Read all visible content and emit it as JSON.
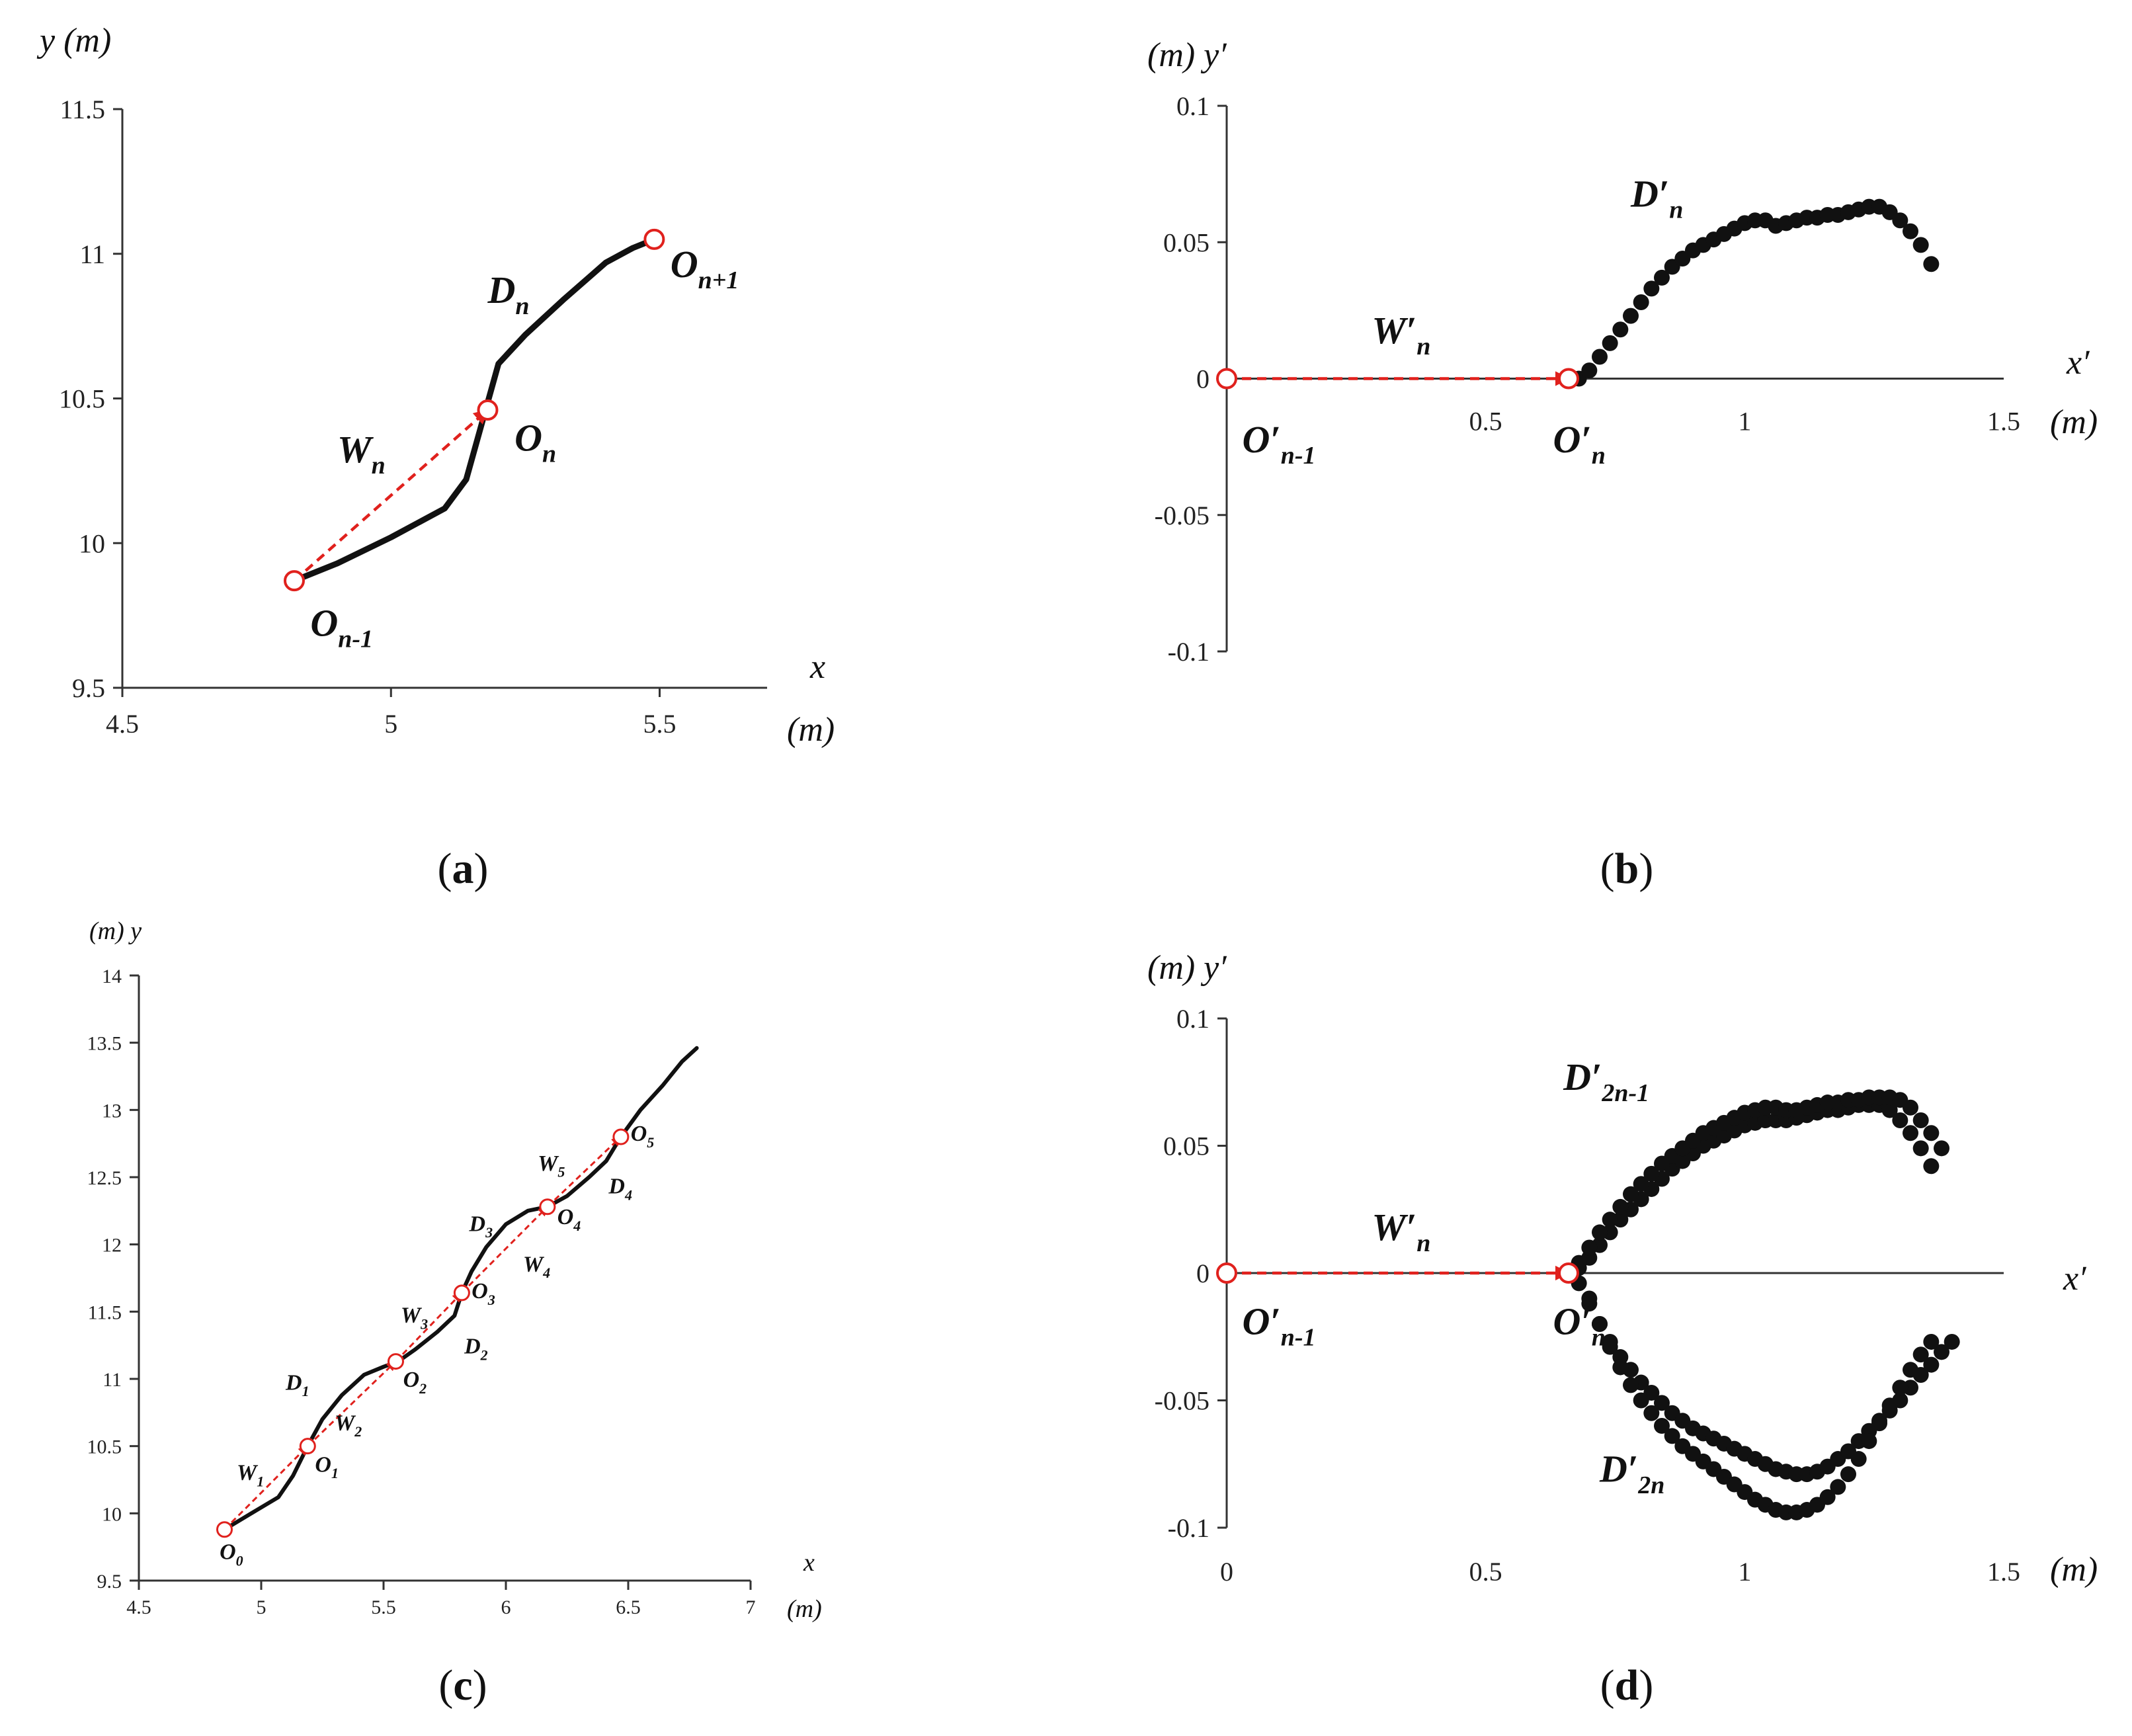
{
  "chart_data": [
    {
      "id": "a",
      "type": "line",
      "caption": "a",
      "xlabel_top": "x",
      "xlabel_unit": "(m)",
      "ylabel": "y (m)",
      "xlim": [
        4.5,
        5.7
      ],
      "ylim": [
        9.5,
        11.5
      ],
      "xticks": [
        "4.5",
        "5",
        "5.5"
      ],
      "yticks": [
        "9.5",
        "10",
        "10.5",
        "11",
        "11.5"
      ],
      "xtick_values": [
        4.5,
        5,
        5.5
      ],
      "ytick_values": [
        9.5,
        10,
        10.5,
        11,
        11.5
      ],
      "series": [
        {
          "x": [
            4.82,
            4.9,
            5.0,
            5.1,
            5.14,
            5.17,
            5.2,
            5.25,
            5.32,
            5.4,
            5.45,
            5.49
          ],
          "y": [
            9.87,
            9.93,
            10.02,
            10.12,
            10.22,
            10.42,
            10.62,
            10.72,
            10.84,
            10.97,
            11.02,
            11.05
          ]
        }
      ],
      "arrows": [
        {
          "x1": 4.82,
          "y1": 9.87,
          "x2": 5.18,
          "y2": 10.46
        }
      ],
      "markers": [
        {
          "x": 4.82,
          "y": 9.87
        },
        {
          "x": 5.18,
          "y": 10.46
        },
        {
          "x": 5.49,
          "y": 11.05
        }
      ],
      "annotations": [
        {
          "base": "W",
          "sub": "n",
          "x": 4.9,
          "y": 10.28
        },
        {
          "base": "O",
          "sub": "n",
          "x": 5.23,
          "y": 10.32
        },
        {
          "base": "D",
          "sub": "n",
          "x": 5.18,
          "y": 10.83
        },
        {
          "base": "O",
          "sub": "n+1",
          "x": 5.52,
          "y": 10.92
        },
        {
          "base": "O",
          "sub": "n-1",
          "x": 4.85,
          "y": 9.68
        }
      ]
    },
    {
      "id": "b",
      "type": "scatter",
      "caption": "b",
      "xlabel": "x′",
      "xlabel_unit": "(m)",
      "ylabel": "(m) y′",
      "xlim": [
        0,
        1.5
      ],
      "ylim": [
        -0.1,
        0.1
      ],
      "xticks": [
        "0.5",
        "1",
        "1.5"
      ],
      "yticks": [
        "-0.1",
        "-0.05",
        "0",
        "0.05",
        "0.1"
      ],
      "xtick_values": [
        0.5,
        1,
        1.5
      ],
      "ytick_values": [
        -0.1,
        -0.05,
        0,
        0.05,
        0.1
      ],
      "series": [
        {
          "x": [
            0.66,
            0.68,
            0.7,
            0.72,
            0.74,
            0.76,
            0.78,
            0.8,
            0.82,
            0.84,
            0.86,
            0.88,
            0.9,
            0.92,
            0.94,
            0.96,
            0.98,
            1.0,
            1.02,
            1.04,
            1.06,
            1.08,
            1.1,
            1.12,
            1.14,
            1.16,
            1.18,
            1.2,
            1.22,
            1.24,
            1.26,
            1.28,
            1.3,
            1.32,
            1.34,
            1.36
          ],
          "y": [
            0.0,
            0.0,
            0.003,
            0.008,
            0.013,
            0.018,
            0.023,
            0.028,
            0.033,
            0.037,
            0.041,
            0.044,
            0.047,
            0.049,
            0.051,
            0.053,
            0.055,
            0.057,
            0.058,
            0.058,
            0.056,
            0.057,
            0.058,
            0.059,
            0.059,
            0.06,
            0.06,
            0.061,
            0.062,
            0.063,
            0.063,
            0.061,
            0.058,
            0.054,
            0.049,
            0.042
          ]
        }
      ],
      "arrows": [
        {
          "x1": 0.0,
          "y1": 0.0,
          "x2": 0.66,
          "y2": 0.0
        }
      ],
      "markers": [
        {
          "x": 0.0,
          "y": 0.0
        },
        {
          "x": 0.66,
          "y": 0.0
        }
      ],
      "annotations": [
        {
          "base": "W′",
          "sub": "n",
          "x": 0.28,
          "y": 0.013
        },
        {
          "base": "D′",
          "sub": "n",
          "x": 0.78,
          "y": 0.063
        },
        {
          "base": "O′",
          "sub": "n-1",
          "x": 0.03,
          "y": -0.027
        },
        {
          "base": "O′",
          "sub": "n",
          "x": 0.63,
          "y": -0.027
        }
      ]
    },
    {
      "id": "c",
      "type": "line",
      "caption": "c",
      "xlabel_top": "x",
      "xlabel_unit": "(m)",
      "ylabel": "(m) y",
      "xlim": [
        4.5,
        7
      ],
      "ylim": [
        9.5,
        14
      ],
      "xticks": [
        "4.5",
        "5",
        "5.5",
        "6",
        "6.5",
        "7"
      ],
      "yticks": [
        "9.5",
        "10",
        "10.5",
        "11",
        "11.5",
        "12",
        "12.5",
        "13",
        "13.5",
        "14"
      ],
      "xtick_values": [
        4.5,
        5,
        5.5,
        6,
        6.5,
        7
      ],
      "ytick_values": [
        9.5,
        10,
        10.5,
        11,
        11.5,
        12,
        12.5,
        13,
        13.5,
        14
      ],
      "series": [
        {
          "x": [
            4.85,
            4.95,
            5.07,
            5.13,
            5.19,
            5.25,
            5.33,
            5.42,
            5.5,
            5.56,
            5.63,
            5.72,
            5.79,
            5.82,
            5.86,
            5.92,
            6.0,
            6.09,
            6.17,
            6.25,
            6.34,
            6.41,
            6.47,
            6.55,
            6.64,
            6.72,
            6.78
          ],
          "y": [
            9.88,
            9.99,
            10.12,
            10.28,
            10.5,
            10.7,
            10.88,
            11.03,
            11.09,
            11.13,
            11.22,
            11.35,
            11.47,
            11.64,
            11.8,
            11.98,
            12.15,
            12.25,
            12.28,
            12.36,
            12.5,
            12.62,
            12.8,
            13.0,
            13.18,
            13.36,
            13.46
          ]
        }
      ],
      "arrows": [
        {
          "x1": 4.85,
          "y1": 9.88,
          "x2": 5.19,
          "y2": 10.5
        },
        {
          "x1": 5.19,
          "y1": 10.5,
          "x2": 5.55,
          "y2": 11.13
        },
        {
          "x1": 5.55,
          "y1": 11.13,
          "x2": 5.82,
          "y2": 11.64
        },
        {
          "x1": 5.82,
          "y1": 11.64,
          "x2": 6.17,
          "y2": 12.28
        },
        {
          "x1": 6.17,
          "y1": 12.28,
          "x2": 6.47,
          "y2": 12.8
        }
      ],
      "markers": [
        {
          "x": 4.85,
          "y": 9.88
        },
        {
          "x": 5.19,
          "y": 10.5
        },
        {
          "x": 5.55,
          "y": 11.13
        },
        {
          "x": 5.82,
          "y": 11.64
        },
        {
          "x": 6.17,
          "y": 12.28
        },
        {
          "x": 6.47,
          "y": 12.8
        }
      ],
      "annotations": [
        {
          "base": "O",
          "sub": "0",
          "x": 4.83,
          "y": 9.66
        },
        {
          "base": "W",
          "sub": "1",
          "x": 4.9,
          "y": 10.25
        },
        {
          "base": "O",
          "sub": "1",
          "x": 5.22,
          "y": 10.31
        },
        {
          "base": "D",
          "sub": "1",
          "x": 5.1,
          "y": 10.92
        },
        {
          "base": "W",
          "sub": "2",
          "x": 5.3,
          "y": 10.62
        },
        {
          "base": "O",
          "sub": "2",
          "x": 5.58,
          "y": 10.94
        },
        {
          "base": "W",
          "sub": "3",
          "x": 5.57,
          "y": 11.42
        },
        {
          "base": "D",
          "sub": "2",
          "x": 5.83,
          "y": 11.19
        },
        {
          "base": "O",
          "sub": "3",
          "x": 5.86,
          "y": 11.6
        },
        {
          "base": "D",
          "sub": "3",
          "x": 5.85,
          "y": 12.1
        },
        {
          "base": "W",
          "sub": "4",
          "x": 6.07,
          "y": 11.8
        },
        {
          "base": "O",
          "sub": "4",
          "x": 6.21,
          "y": 12.15
        },
        {
          "base": "W",
          "sub": "5",
          "x": 6.13,
          "y": 12.55
        },
        {
          "base": "D",
          "sub": "4",
          "x": 6.42,
          "y": 12.38
        },
        {
          "base": "O",
          "sub": "5",
          "x": 6.51,
          "y": 12.77
        }
      ]
    },
    {
      "id": "d",
      "type": "scatter",
      "caption": "d",
      "xlabel": "x′",
      "xlabel_unit": "(m)",
      "ylabel": "(m) y′",
      "xlim": [
        0,
        1.5
      ],
      "ylim": [
        -0.1,
        0.1
      ],
      "xticks": [
        "0",
        "0.5",
        "1",
        "1.5"
      ],
      "yticks": [
        "-0.1",
        "-0.05",
        "0",
        "0.05",
        "0.1"
      ],
      "xtick_values": [
        0,
        0.5,
        1,
        1.5
      ],
      "ytick_values": [
        -0.1,
        -0.05,
        0,
        0.05,
        0.1
      ],
      "series": [
        {
          "x": [
            0.66,
            0.68,
            0.7,
            0.72,
            0.74,
            0.76,
            0.78,
            0.8,
            0.82,
            0.84,
            0.86,
            0.88,
            0.9,
            0.92,
            0.94,
            0.96,
            0.98,
            1.0,
            1.02,
            1.04,
            1.06,
            1.08,
            1.1,
            1.12,
            1.14,
            1.16,
            1.18,
            1.2,
            1.22,
            1.24,
            1.26,
            1.28,
            1.3,
            1.32,
            1.34,
            1.36
          ],
          "y": [
            0.0,
            0.002,
            0.006,
            0.011,
            0.016,
            0.021,
            0.025,
            0.029,
            0.033,
            0.037,
            0.041,
            0.044,
            0.047,
            0.05,
            0.052,
            0.054,
            0.056,
            0.058,
            0.059,
            0.06,
            0.06,
            0.06,
            0.061,
            0.062,
            0.063,
            0.064,
            0.064,
            0.065,
            0.066,
            0.066,
            0.066,
            0.064,
            0.06,
            0.055,
            0.049,
            0.042
          ]
        },
        {
          "x": [
            0.68,
            0.7,
            0.72,
            0.74,
            0.76,
            0.78,
            0.8,
            0.82,
            0.84,
            0.86,
            0.88,
            0.9,
            0.92,
            0.94,
            0.96,
            0.98,
            1.0,
            1.02,
            1.04,
            1.06,
            1.08,
            1.1,
            1.12,
            1.14,
            1.16,
            1.18,
            1.2,
            1.22,
            1.24,
            1.26,
            1.28,
            1.3,
            1.32,
            1.34,
            1.36,
            1.38
          ],
          "y": [
            0.004,
            0.01,
            0.016,
            0.021,
            0.026,
            0.031,
            0.035,
            0.039,
            0.043,
            0.046,
            0.049,
            0.052,
            0.055,
            0.057,
            0.059,
            0.061,
            0.063,
            0.064,
            0.065,
            0.065,
            0.064,
            0.064,
            0.065,
            0.066,
            0.067,
            0.067,
            0.068,
            0.068,
            0.069,
            0.069,
            0.069,
            0.068,
            0.065,
            0.06,
            0.055,
            0.049
          ]
        },
        {
          "x": [
            0.68,
            0.7,
            0.72,
            0.74,
            0.76,
            0.78,
            0.8,
            0.82,
            0.84,
            0.86,
            0.88,
            0.9,
            0.92,
            0.94,
            0.96,
            0.98,
            1.0,
            1.02,
            1.04,
            1.06,
            1.08,
            1.1,
            1.12,
            1.14,
            1.16,
            1.18,
            1.2,
            1.22,
            1.24,
            1.26,
            1.28,
            1.3,
            1.32,
            1.34,
            1.36,
            1.38,
            1.4
          ],
          "y": [
            -0.004,
            -0.012,
            -0.02,
            -0.027,
            -0.033,
            -0.038,
            -0.043,
            -0.047,
            -0.051,
            -0.055,
            -0.058,
            -0.061,
            -0.063,
            -0.065,
            -0.067,
            -0.069,
            -0.071,
            -0.073,
            -0.075,
            -0.077,
            -0.078,
            -0.079,
            -0.079,
            -0.078,
            -0.076,
            -0.073,
            -0.07,
            -0.066,
            -0.062,
            -0.058,
            -0.054,
            -0.05,
            -0.045,
            -0.04,
            -0.036,
            -0.031,
            -0.027
          ]
        },
        {
          "x": [
            0.7,
            0.72,
            0.74,
            0.76,
            0.78,
            0.8,
            0.82,
            0.84,
            0.86,
            0.88,
            0.9,
            0.92,
            0.94,
            0.96,
            0.98,
            1.0,
            1.02,
            1.04,
            1.06,
            1.08,
            1.1,
            1.12,
            1.14,
            1.16,
            1.18,
            1.2,
            1.22,
            1.24,
            1.26,
            1.28,
            1.3,
            1.32,
            1.34,
            1.36
          ],
          "y": [
            -0.01,
            -0.02,
            -0.029,
            -0.037,
            -0.044,
            -0.05,
            -0.055,
            -0.06,
            -0.064,
            -0.068,
            -0.071,
            -0.074,
            -0.077,
            -0.08,
            -0.083,
            -0.086,
            -0.089,
            -0.091,
            -0.093,
            -0.094,
            -0.094,
            -0.093,
            -0.091,
            -0.088,
            -0.084,
            -0.079,
            -0.073,
            -0.066,
            -0.059,
            -0.052,
            -0.045,
            -0.038,
            -0.032,
            -0.027
          ]
        }
      ],
      "arrows": [
        {
          "x1": 0.0,
          "y1": 0.0,
          "x2": 0.66,
          "y2": 0.0
        }
      ],
      "markers": [
        {
          "x": 0.0,
          "y": 0.0
        },
        {
          "x": 0.66,
          "y": 0.0
        }
      ],
      "annotations": [
        {
          "base": "W′",
          "sub": "n",
          "x": 0.28,
          "y": 0.013
        },
        {
          "base": "D′",
          "sub": "2n-1",
          "x": 0.65,
          "y": 0.072
        },
        {
          "base": "D′",
          "sub": "2n",
          "x": 0.72,
          "y": -0.082
        },
        {
          "base": "O′",
          "sub": "n-1",
          "x": 0.03,
          "y": -0.024
        },
        {
          "base": "O′",
          "sub": "n",
          "x": 0.63,
          "y": -0.024
        }
      ]
    }
  ]
}
